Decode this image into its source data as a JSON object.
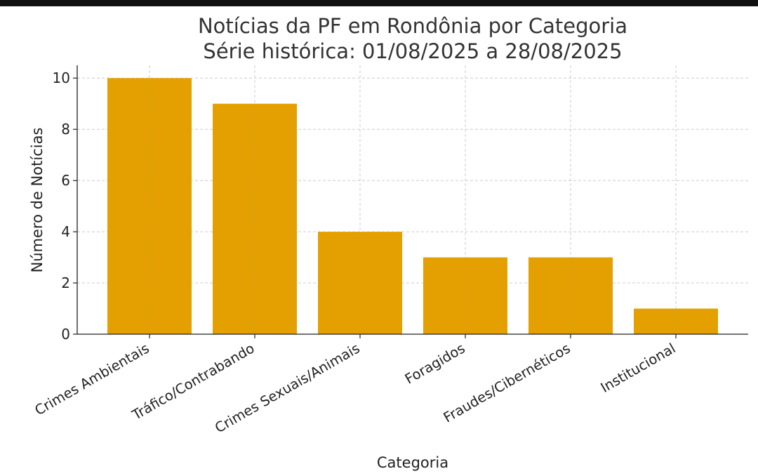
{
  "chart_data": {
    "type": "bar",
    "title": "Notícias da PF em Rondônia por Categoria",
    "subtitle": "Série histórica: 01/08/2025 a 28/08/2025",
    "xlabel": "Categoria",
    "ylabel": "Número de Notícias",
    "categories": [
      "Crimes Ambientais",
      "Tráfico/Contrabando",
      "Crimes Sexuais/Animais",
      "Foragidos",
      "Fraudes/Cibernéticos",
      "Institucional"
    ],
    "values": [
      10,
      9,
      4,
      3,
      3,
      1
    ],
    "ylim": [
      0,
      10.5
    ],
    "yticks": [
      0,
      2,
      4,
      6,
      8,
      10
    ],
    "grid": true,
    "grid_style": "dashed",
    "bar_color": "#e3a000",
    "grid_color": "#cccccc"
  }
}
